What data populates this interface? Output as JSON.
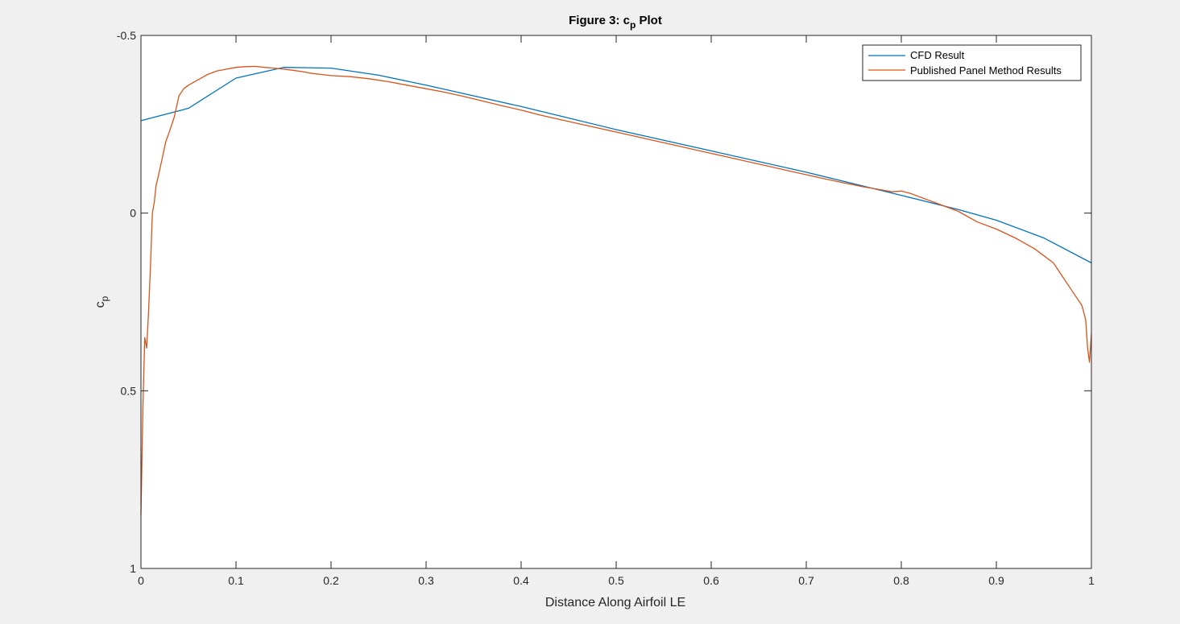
{
  "colors": {
    "figure_background": "#f0f0f0",
    "axes_background": "#ffffff",
    "axis_color": "#262626",
    "series_1": "#0072bd",
    "series_2": "#d95319"
  },
  "chart_data": {
    "type": "line",
    "title": {
      "main": "Figure 3: c",
      "subscript": "p",
      "suffix": " Plot"
    },
    "xlabel": "Distance Along Airfoil LE",
    "ylabel": {
      "main": "c",
      "subscript": "p"
    },
    "xlim": [
      0,
      1
    ],
    "ylim": [
      -0.5,
      1
    ],
    "y_reversed": true,
    "grid": false,
    "legend_position": "top-right",
    "x_ticks": [
      "0",
      "0.1",
      "0.2",
      "0.3",
      "0.4",
      "0.5",
      "0.6",
      "0.7",
      "0.8",
      "0.9",
      "1"
    ],
    "y_ticks": [
      "-0.5",
      "0",
      "0.5",
      "1"
    ],
    "series": [
      {
        "name": "CFD Result",
        "color": "#0072bd",
        "x": [
          0,
          0.05,
          0.1,
          0.15,
          0.2,
          0.25,
          0.3,
          0.4,
          0.5,
          0.6,
          0.7,
          0.8,
          0.86,
          0.9,
          0.95,
          1.0
        ],
        "y": [
          -0.26,
          -0.295,
          -0.38,
          -0.41,
          -0.408,
          -0.388,
          -0.36,
          -0.3,
          -0.235,
          -0.175,
          -0.115,
          -0.05,
          -0.01,
          0.02,
          0.07,
          0.14
        ]
      },
      {
        "name": "Published Panel Method Results",
        "color": "#d95319",
        "x": [
          0,
          0.002,
          0.004,
          0.006,
          0.008,
          0.01,
          0.012,
          0.014,
          0.016,
          0.018,
          0.022,
          0.026,
          0.03,
          0.035,
          0.04,
          0.045,
          0.05,
          0.06,
          0.07,
          0.08,
          0.09,
          0.1,
          0.11,
          0.12,
          0.13,
          0.14,
          0.15,
          0.16,
          0.17,
          0.18,
          0.19,
          0.2,
          0.22,
          0.24,
          0.26,
          0.28,
          0.3,
          0.32,
          0.34,
          0.36,
          0.38,
          0.4,
          0.42,
          0.44,
          0.46,
          0.48,
          0.5,
          0.52,
          0.54,
          0.56,
          0.58,
          0.6,
          0.62,
          0.64,
          0.66,
          0.68,
          0.7,
          0.72,
          0.74,
          0.76,
          0.78,
          0.79,
          0.8,
          0.81,
          0.82,
          0.84,
          0.86,
          0.88,
          0.9,
          0.92,
          0.94,
          0.96,
          0.97,
          0.98,
          0.99,
          0.994,
          0.996,
          0.998,
          1.0
        ],
        "y": [
          0.85,
          0.55,
          0.35,
          0.38,
          0.28,
          0.15,
          0.0,
          -0.03,
          -0.08,
          -0.1,
          -0.15,
          -0.2,
          -0.23,
          -0.27,
          -0.33,
          -0.35,
          -0.36,
          -0.375,
          -0.39,
          -0.4,
          -0.405,
          -0.41,
          -0.412,
          -0.413,
          -0.41,
          -0.408,
          -0.405,
          -0.402,
          -0.398,
          -0.393,
          -0.39,
          -0.387,
          -0.384,
          -0.378,
          -0.37,
          -0.36,
          -0.35,
          -0.34,
          -0.328,
          -0.315,
          -0.302,
          -0.29,
          -0.276,
          -0.264,
          -0.252,
          -0.24,
          -0.228,
          -0.216,
          -0.204,
          -0.192,
          -0.18,
          -0.168,
          -0.156,
          -0.144,
          -0.132,
          -0.12,
          -0.108,
          -0.096,
          -0.085,
          -0.074,
          -0.065,
          -0.06,
          -0.062,
          -0.055,
          -0.045,
          -0.025,
          -0.005,
          0.025,
          0.045,
          0.07,
          0.1,
          0.14,
          0.18,
          0.22,
          0.26,
          0.3,
          0.38,
          0.42,
          0.34
        ]
      }
    ]
  }
}
